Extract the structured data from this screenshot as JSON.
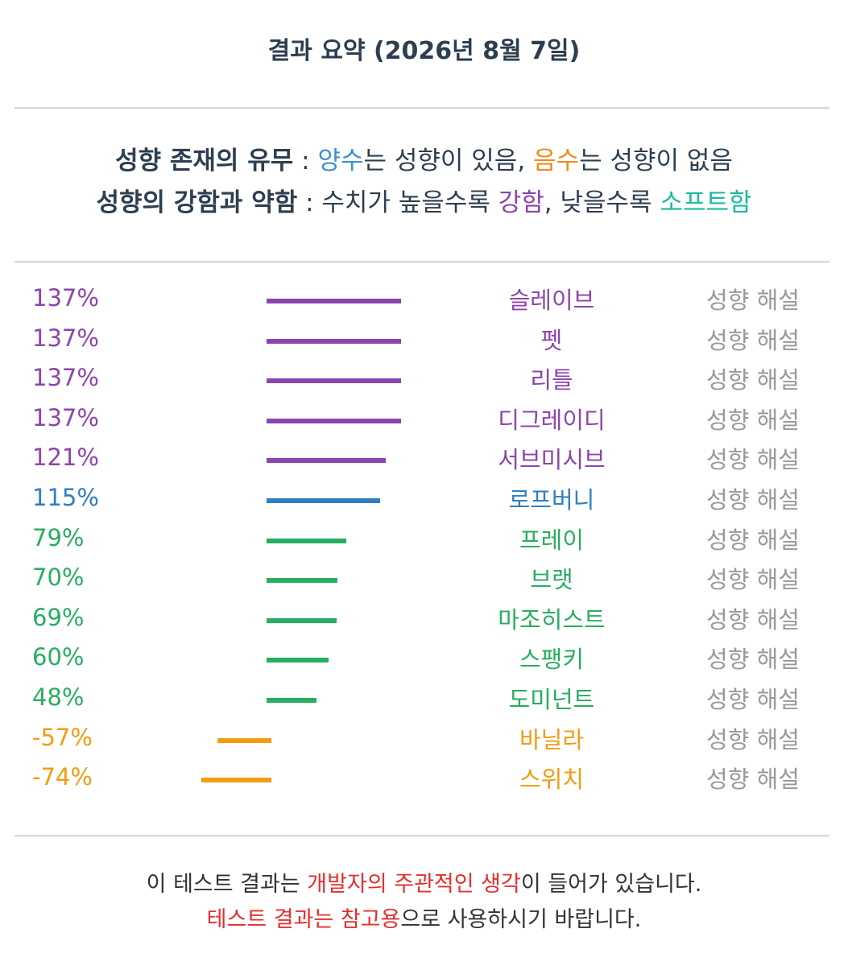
{
  "title": "결과 요약 (2026년 8월 7일)",
  "legend": {
    "line1": {
      "bold": "성향 존재의 유무",
      "sep": " : ",
      "pos_word": "양수",
      "pos_rest": "는 성향이 있음, ",
      "neg_word": "음수",
      "neg_rest": "는 성향이 없음"
    },
    "line2": {
      "bold": "성향의 강함과 약함",
      "sep": " : ",
      "pre": "수치가 높을수록 ",
      "strong_word": "강함",
      "mid": ", 낮을수록 ",
      "soft_word": "소프트함"
    }
  },
  "colors": {
    "purple": "#8e44ad",
    "blue": "#2e7fc1",
    "green": "#27ae60",
    "orange": "#f39c12",
    "legend_blue": "#3a8fd6",
    "legend_orange": "#f08a1e",
    "legend_teal": "#1abc9c",
    "footer_red": "#e62e2e"
  },
  "chart_data": {
    "type": "bar",
    "categories": [
      "슬레이브",
      "펫",
      "리틀",
      "디그레이디",
      "서브미시브",
      "로프버니",
      "프레이",
      "브랫",
      "마조히스트",
      "스팽키",
      "도미넌트",
      "바닐라",
      "스위치"
    ],
    "values": [
      137,
      137,
      137,
      137,
      121,
      115,
      79,
      70,
      69,
      60,
      48,
      -57,
      -74
    ],
    "value_labels": [
      "137%",
      "137%",
      "137%",
      "137%",
      "121%",
      "115%",
      "79%",
      "70%",
      "69%",
      "60%",
      "48%",
      "-57%",
      "-74%"
    ],
    "row_colors": [
      "purple",
      "purple",
      "purple",
      "purple",
      "purple",
      "blue",
      "green",
      "green",
      "green",
      "green",
      "green",
      "orange",
      "orange"
    ],
    "link_label": "성향 해설"
  },
  "footer": {
    "line1": {
      "pre": "이 테스트 결과는 ",
      "red": "개발자의 주관적인 생각",
      "post": "이 들어가 있습니다."
    },
    "line2": {
      "red": "테스트 결과는 참고용",
      "post": "으로 사용하시기 바랍니다."
    }
  }
}
